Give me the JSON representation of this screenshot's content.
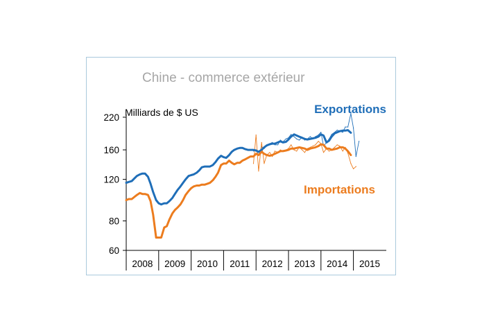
{
  "chart_data": {
    "type": "line",
    "title": "Chine - commerce extérieur",
    "ylabel": "Milliards de $ US",
    "xlabel": "",
    "y_scale": "log",
    "yticks": [
      60,
      80,
      120,
      160,
      220
    ],
    "ylim": [
      60,
      220
    ],
    "xticks": [
      "2008",
      "2009",
      "2010",
      "2011",
      "2012",
      "2013",
      "2014",
      "2015"
    ],
    "grid": false,
    "colors": {
      "exports": "#1f6eb8",
      "imports": "#ec7c1e",
      "frame": "#a9c9dc"
    },
    "series": [
      {
        "name": "Exportations",
        "color": "#1f6eb8",
        "x": [
          2008.0,
          2008.08,
          2008.17,
          2008.25,
          2008.33,
          2008.42,
          2008.5,
          2008.58,
          2008.67,
          2008.75,
          2008.83,
          2008.92,
          2009.0,
          2009.08,
          2009.17,
          2009.25,
          2009.33,
          2009.42,
          2009.5,
          2009.58,
          2009.67,
          2009.75,
          2009.83,
          2009.92,
          2010.0,
          2010.08,
          2010.17,
          2010.25,
          2010.33,
          2010.42,
          2010.5,
          2010.58,
          2010.67,
          2010.75,
          2010.83,
          2010.92,
          2011.0,
          2011.08,
          2011.17,
          2011.25,
          2011.33,
          2011.42,
          2011.5,
          2011.58,
          2011.67,
          2011.75,
          2011.83,
          2011.92,
          2012.0,
          2012.08,
          2012.17,
          2012.25,
          2012.33,
          2012.42,
          2012.5,
          2012.58,
          2012.67,
          2012.75,
          2012.83,
          2012.92,
          2013.0,
          2013.08,
          2013.17,
          2013.25,
          2013.33,
          2013.42,
          2013.5,
          2013.58,
          2013.67,
          2013.75,
          2013.83,
          2013.92,
          2014.0,
          2014.08,
          2014.17,
          2014.25,
          2014.33,
          2014.42,
          2014.5,
          2014.58,
          2014.67,
          2014.75,
          2014.83,
          2014.92
        ],
        "values": [
          116,
          117,
          118,
          121,
          124,
          126,
          127,
          127,
          123,
          115,
          106,
          98,
          95,
          94,
          95,
          95,
          97,
          100,
          104,
          108,
          112,
          116,
          120,
          124,
          125,
          126,
          128,
          131,
          135,
          136,
          136,
          136,
          138,
          142,
          147,
          151,
          149,
          148,
          152,
          157,
          160,
          162,
          163,
          163,
          161,
          160,
          160,
          160,
          159,
          157,
          160,
          164,
          167,
          169,
          170,
          170,
          172,
          174,
          172,
          173,
          177,
          182,
          186,
          184,
          182,
          180,
          178,
          177,
          178,
          179,
          180,
          182,
          186,
          184,
          172,
          175,
          182,
          188,
          190,
          192,
          193,
          193,
          194,
          189
        ]
      },
      {
        "name": "Importations",
        "color": "#ec7c1e",
        "x": [
          2008.0,
          2008.08,
          2008.17,
          2008.25,
          2008.33,
          2008.42,
          2008.5,
          2008.58,
          2008.67,
          2008.75,
          2008.83,
          2008.92,
          2009.0,
          2009.08,
          2009.17,
          2009.25,
          2009.33,
          2009.42,
          2009.5,
          2009.58,
          2009.67,
          2009.75,
          2009.83,
          2009.92,
          2010.0,
          2010.08,
          2010.17,
          2010.25,
          2010.33,
          2010.42,
          2010.5,
          2010.58,
          2010.67,
          2010.75,
          2010.83,
          2010.92,
          2011.0,
          2011.08,
          2011.17,
          2011.25,
          2011.33,
          2011.42,
          2011.5,
          2011.58,
          2011.67,
          2011.75,
          2011.83,
          2011.92,
          2012.0,
          2012.08,
          2012.17,
          2012.25,
          2012.33,
          2012.42,
          2012.5,
          2012.58,
          2012.67,
          2012.75,
          2012.83,
          2012.92,
          2013.0,
          2013.08,
          2013.17,
          2013.25,
          2013.33,
          2013.42,
          2013.5,
          2013.58,
          2013.67,
          2013.75,
          2013.83,
          2013.92,
          2014.0,
          2014.08,
          2014.17,
          2014.25,
          2014.33,
          2014.42,
          2014.5,
          2014.58,
          2014.67,
          2014.75,
          2014.83,
          2014.92
        ],
        "values": [
          98,
          99,
          99,
          101,
          103,
          105,
          104,
          104,
          103,
          97,
          85,
          68,
          68,
          68,
          75,
          76,
          81,
          86,
          89,
          91,
          94,
          98,
          103,
          107,
          110,
          112,
          113,
          113,
          114,
          114,
          115,
          116,
          119,
          123,
          128,
          138,
          140,
          140,
          144,
          141,
          139,
          141,
          141,
          144,
          146,
          148,
          150,
          150,
          154,
          152,
          157,
          154,
          152,
          151,
          152,
          154,
          156,
          158,
          158,
          159,
          160,
          162,
          162,
          163,
          164,
          163,
          162,
          160,
          162,
          163,
          164,
          166,
          169,
          168,
          162,
          162,
          160,
          161,
          162,
          164,
          164,
          162,
          158,
          152
        ]
      }
    ],
    "raw_series": [
      {
        "color": "#1f6eb8",
        "x": [
          2011.92,
          2012.0,
          2012.08,
          2012.17,
          2012.25,
          2012.33,
          2012.42,
          2012.5,
          2012.58,
          2012.67,
          2012.75,
          2012.83,
          2012.92,
          2013.0,
          2013.08,
          2013.17,
          2013.25,
          2013.33,
          2013.42,
          2013.5,
          2013.58,
          2013.67,
          2013.75,
          2013.83,
          2013.92,
          2014.0,
          2014.08,
          2014.17,
          2014.25,
          2014.33,
          2014.42,
          2014.5,
          2014.58,
          2014.67,
          2014.75,
          2014.83,
          2014.92,
          2015.0,
          2015.08,
          2015.17
        ],
        "values": [
          158,
          160,
          152,
          165,
          162,
          166,
          170,
          172,
          168,
          168,
          176,
          173,
          178,
          180,
          186,
          182,
          178,
          176,
          181,
          176,
          178,
          182,
          178,
          182,
          185,
          190,
          166,
          172,
          178,
          186,
          190,
          194,
          192,
          190,
          200,
          200,
          228,
          198,
          150,
          174
        ]
      },
      {
        "color": "#ec7c1e",
        "x": [
          2011.92,
          2012.0,
          2012.08,
          2012.17,
          2012.25,
          2012.33,
          2012.42,
          2012.5,
          2012.58,
          2012.67,
          2012.75,
          2012.83,
          2012.92,
          2013.0,
          2013.08,
          2013.17,
          2013.25,
          2013.33,
          2013.42,
          2013.5,
          2013.58,
          2013.67,
          2013.75,
          2013.83,
          2013.92,
          2014.0,
          2014.08,
          2014.17,
          2014.25,
          2014.33,
          2014.42,
          2014.5,
          2014.58,
          2014.67,
          2014.75,
          2014.83,
          2014.92,
          2015.0,
          2015.08
        ],
        "values": [
          140,
          185,
          130,
          172,
          140,
          152,
          156,
          150,
          158,
          156,
          160,
          158,
          160,
          162,
          168,
          160,
          158,
          164,
          160,
          156,
          162,
          164,
          166,
          168,
          174,
          170,
          156,
          162,
          158,
          160,
          164,
          168,
          166,
          158,
          164,
          155,
          140,
          133,
          136
        ]
      }
    ]
  }
}
